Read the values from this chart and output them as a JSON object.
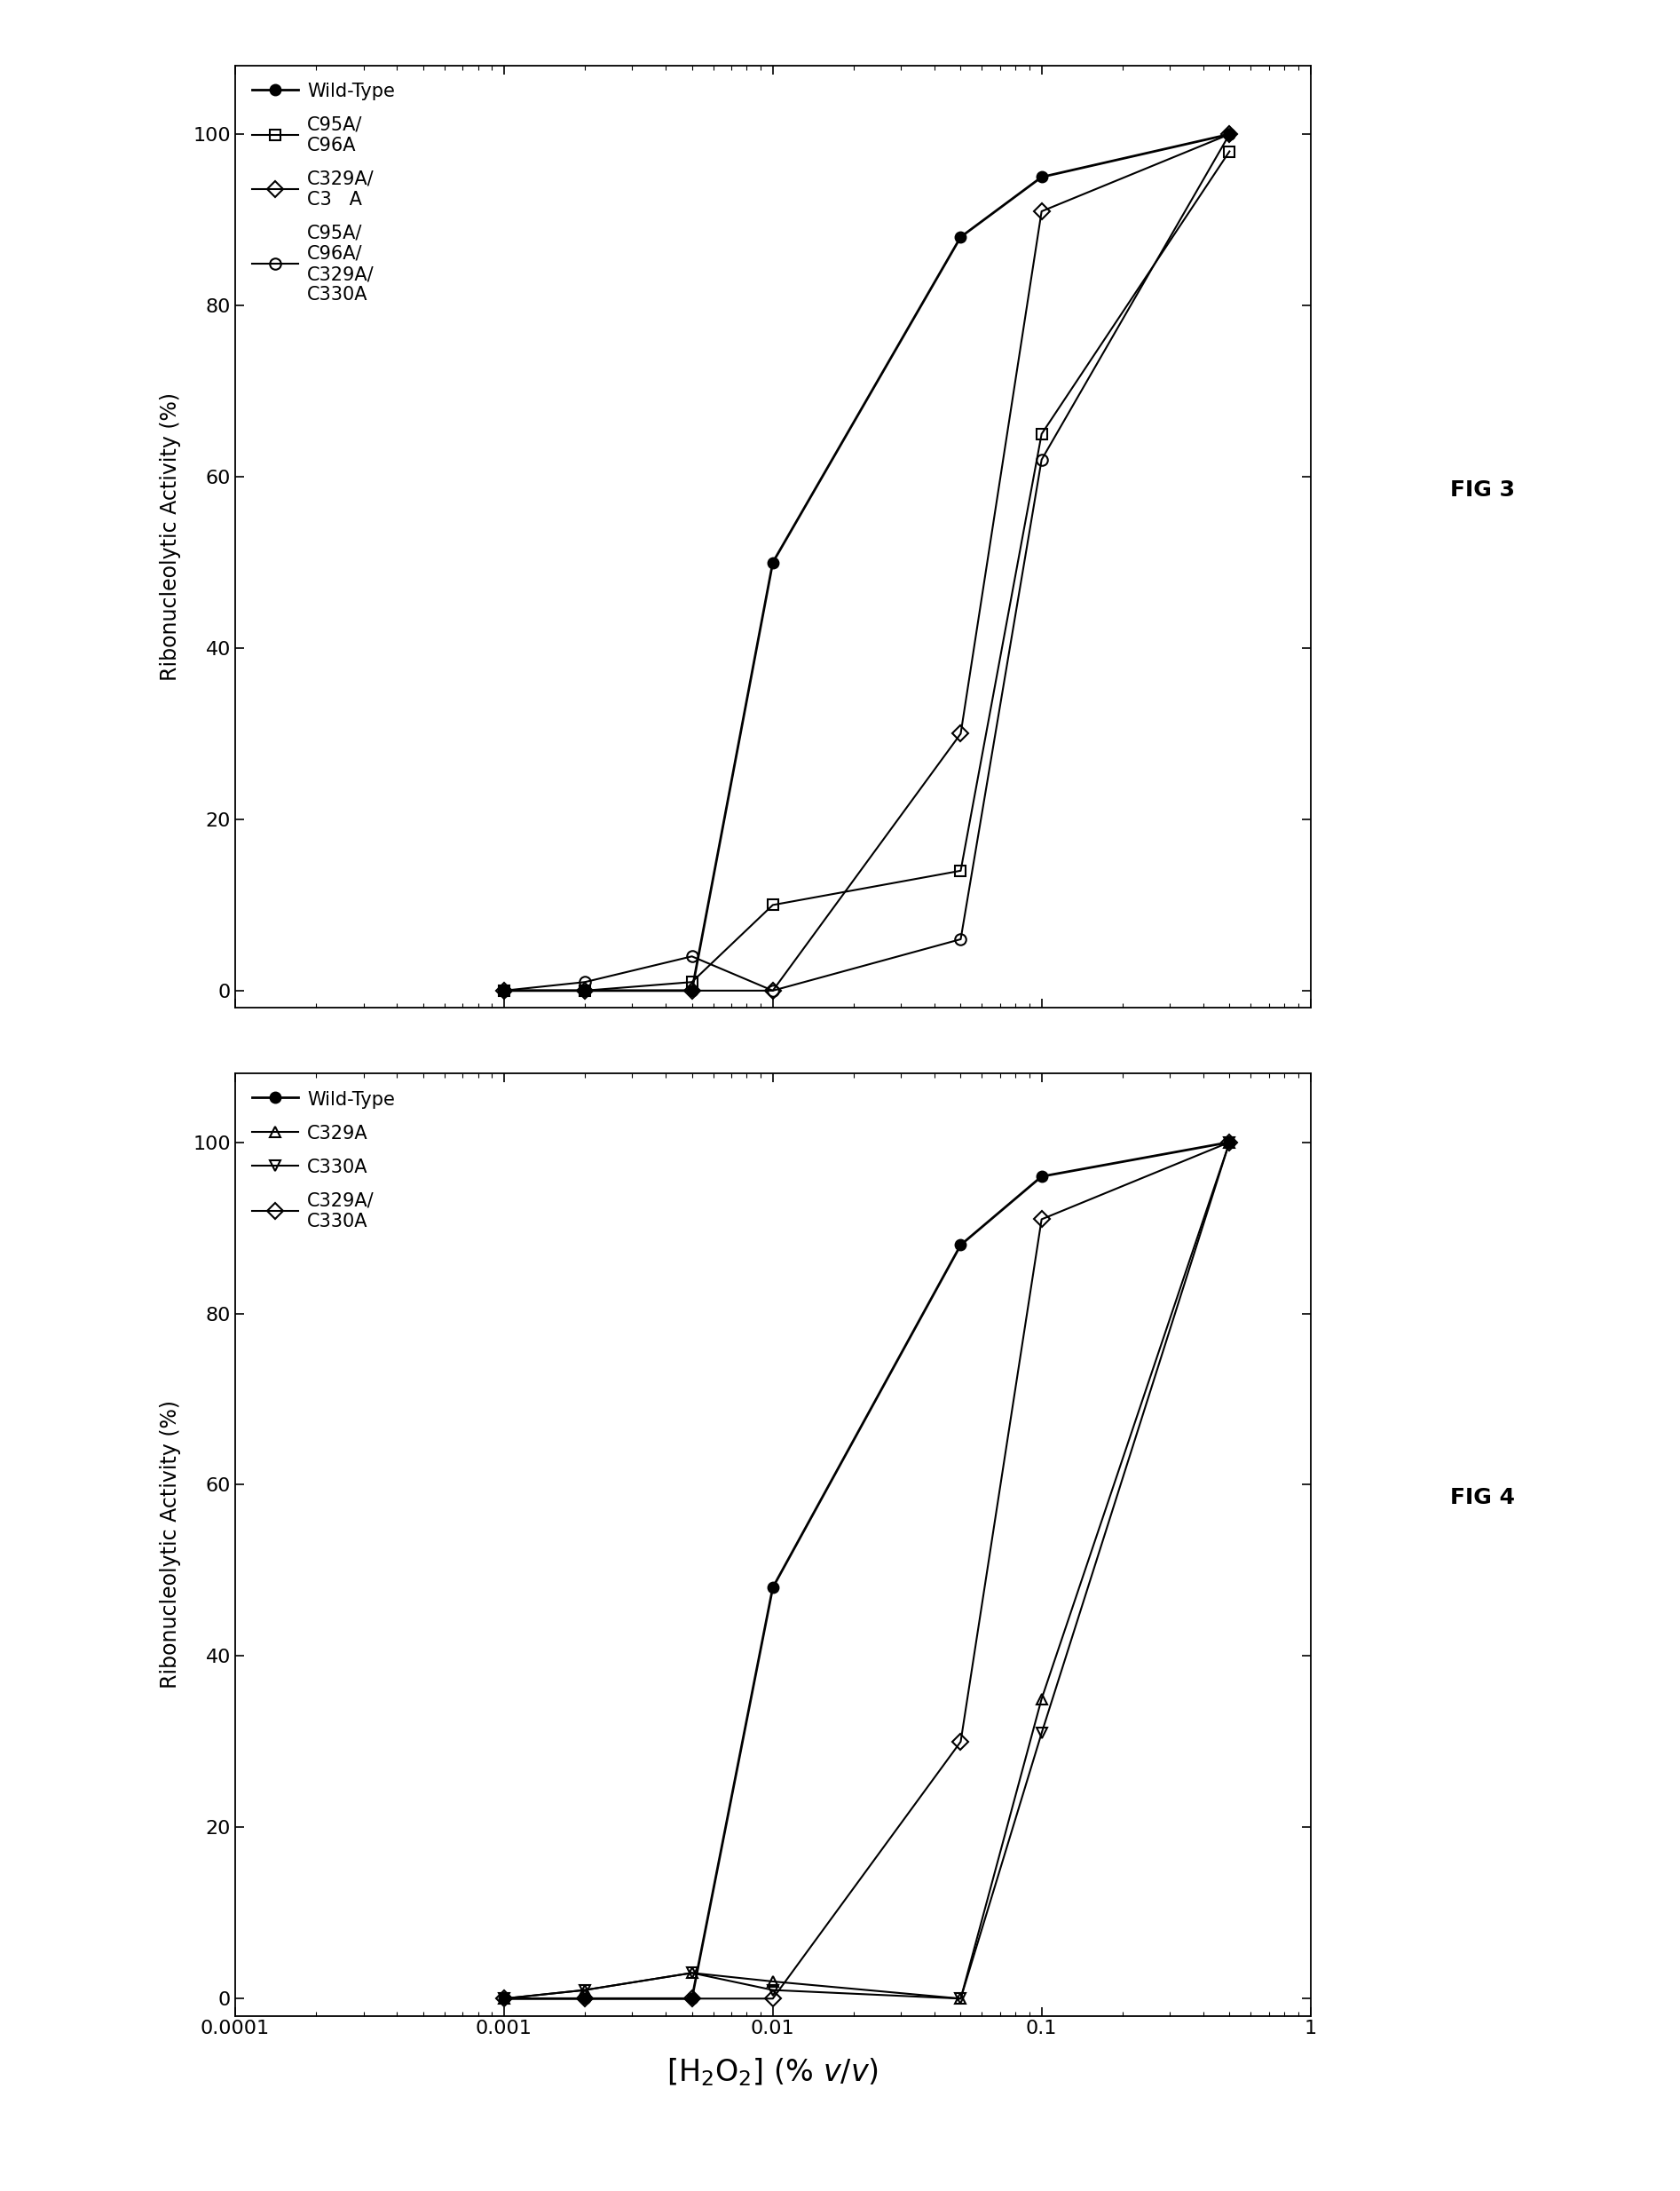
{
  "fig3_series": [
    {
      "x": [
        0.001,
        0.002,
        0.005,
        0.01,
        0.05,
        0.1,
        0.5
      ],
      "y": [
        0,
        0,
        0,
        50,
        88,
        95,
        100
      ],
      "label": "Wild-Type",
      "marker": "o",
      "fillstyle": "full",
      "linewidth": 2.0
    },
    {
      "x": [
        0.001,
        0.002,
        0.005,
        0.01,
        0.05,
        0.1,
        0.5
      ],
      "y": [
        0,
        0,
        1,
        10,
        14,
        65,
        98
      ],
      "label": "C95A/\nC96A",
      "marker": "s",
      "fillstyle": "none",
      "linewidth": 1.5
    },
    {
      "x": [
        0.001,
        0.002,
        0.005,
        0.01,
        0.05,
        0.1,
        0.5
      ],
      "y": [
        0,
        0,
        0,
        0,
        30,
        91,
        100
      ],
      "label": "C329A/\nC3   A",
      "marker": "D",
      "fillstyle": "none",
      "linewidth": 1.5
    },
    {
      "x": [
        0.001,
        0.002,
        0.005,
        0.01,
        0.05,
        0.1,
        0.5
      ],
      "y": [
        0,
        1,
        4,
        0,
        6,
        62,
        100
      ],
      "label": "C95A/\nC96A/\nC329A/\nC330A",
      "marker": "o",
      "fillstyle": "none",
      "linewidth": 1.5
    }
  ],
  "fig4_series": [
    {
      "x": [
        0.001,
        0.002,
        0.005,
        0.01,
        0.05,
        0.1,
        0.5
      ],
      "y": [
        0,
        0,
        0,
        48,
        88,
        96,
        100
      ],
      "label": "Wild-Type",
      "marker": "o",
      "fillstyle": "full",
      "linewidth": 2.0
    },
    {
      "x": [
        0.001,
        0.002,
        0.005,
        0.01,
        0.05,
        0.1,
        0.5
      ],
      "y": [
        0,
        1,
        3,
        2,
        0,
        35,
        100
      ],
      "label": "C329A",
      "marker": "^",
      "fillstyle": "none",
      "linewidth": 1.5
    },
    {
      "x": [
        0.001,
        0.002,
        0.005,
        0.01,
        0.05,
        0.1,
        0.5
      ],
      "y": [
        0,
        1,
        3,
        1,
        0,
        31,
        100
      ],
      "label": "C330A",
      "marker": "v",
      "fillstyle": "none",
      "linewidth": 1.5
    },
    {
      "x": [
        0.001,
        0.002,
        0.005,
        0.01,
        0.05,
        0.1,
        0.5
      ],
      "y": [
        0,
        0,
        0,
        0,
        30,
        91,
        100
      ],
      "label": "C329A/\nC330A",
      "marker": "D",
      "fillstyle": "none",
      "linewidth": 1.5
    }
  ],
  "ylabel": "Ribonucleolytic Activity (%)",
  "xlim": [
    0.0001,
    1.0
  ],
  "ylim": [
    -2,
    108
  ],
  "yticks": [
    0,
    20,
    40,
    60,
    80,
    100
  ],
  "xticks": [
    0.0001,
    0.001,
    0.01,
    0.1,
    1
  ],
  "xticklabels": [
    "0.0001",
    "0.001",
    "0.01",
    "0.1",
    "1"
  ],
  "fig3_label": "FIG 3",
  "fig4_label": "FIG 4",
  "marker_size": 9,
  "tick_labelsize": 16,
  "legend_fontsize": 15,
  "ylabel_fontsize": 17,
  "xlabel_fontsize": 24,
  "figlabel_fontsize": 18
}
